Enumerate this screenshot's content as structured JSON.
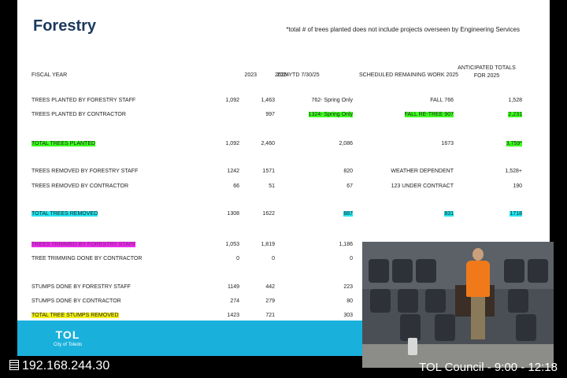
{
  "slide": {
    "title": "Forestry",
    "note": "*total # of trees planted does not include projects overseen by Engineering Services",
    "headers": {
      "fiscal": "FISCAL YEAR",
      "y2023": "2023",
      "y2024": "2024",
      "ytd": "2025 YTD 7/30/25",
      "scheduled": "SCHEDULED REMAINING WORK 2025",
      "anticipated": "ANTICIPATED TOTALS FOR 2025"
    },
    "rows": [
      {
        "label": "TREES PLANTED BY FORESTRY STAFF",
        "y2023": "1,092",
        "y2024": "1,463",
        "ytd": "762- Spring Only",
        "scheduled": "FALL 766",
        "anticipated": "1,528"
      },
      {
        "label": "TREES PLANTED BY CONTRACTOR",
        "y2023": "",
        "y2024": "997",
        "ytd": "1324- Spring Only",
        "scheduled": "FALL RE-TREE 907",
        "anticipated": "2,231"
      },
      {
        "label": "TOTAL TREES PLANTED",
        "y2023": "1,092",
        "y2024": "2,460",
        "ytd": "2,086",
        "scheduled": "1673",
        "anticipated": "3,759*"
      },
      {
        "label": "TREES REMOVED BY FORESTRY STAFF",
        "y2023": "1242",
        "y2024": "1571",
        "ytd": "820",
        "scheduled": "WEATHER DEPENDENT",
        "anticipated": "1,528+"
      },
      {
        "label": "TREES REMOVED BY CONTRACTOR",
        "y2023": "66",
        "y2024": "51",
        "ytd": "67",
        "scheduled": "123  UNDER CONTRACT",
        "anticipated": "190"
      },
      {
        "label": "TOTAL TREES REMOVED",
        "y2023": "1308",
        "y2024": "1622",
        "ytd": "887",
        "scheduled": "831",
        "anticipated": "1718"
      },
      {
        "label": "TREES TRIMMED BY FORESTRY STAFF",
        "y2023": "1,053",
        "y2024": "1,819",
        "ytd": "1,186",
        "scheduled": "",
        "anticipated": ""
      },
      {
        "label": "TREE TRIMMING DONE BY CONTRACTOR",
        "y2023": "0",
        "y2024": "0",
        "ytd": "0",
        "scheduled": "",
        "anticipated": ""
      },
      {
        "label": "STUMPS DONE BY FORESTRY STAFF",
        "y2023": "1149",
        "y2024": "442",
        "ytd": "223",
        "scheduled": "",
        "anticipated": ""
      },
      {
        "label": "STUMPS DONE BY CONTRACTOR",
        "y2023": "274",
        "y2024": "279",
        "ytd": "80",
        "scheduled": "",
        "anticipated": ""
      },
      {
        "label": "TOTAL TREE STUMPS REMOVED",
        "y2023": "1423",
        "y2024": "721",
        "ytd": "303",
        "scheduled": "",
        "anticipated": ""
      }
    ],
    "footer": {
      "logo": "TOL",
      "logo_sub": "City of Toledo"
    }
  },
  "overlay": {
    "ip_address": "192.168.244.30",
    "caption": "TOL Council - 9:00 - 12:18"
  },
  "colors": {
    "green": "#3cff1e",
    "cyan": "#22e6f0",
    "magenta": "#e62ee6",
    "yellow": "#f5f21a",
    "footer": "#1ab0dc"
  }
}
